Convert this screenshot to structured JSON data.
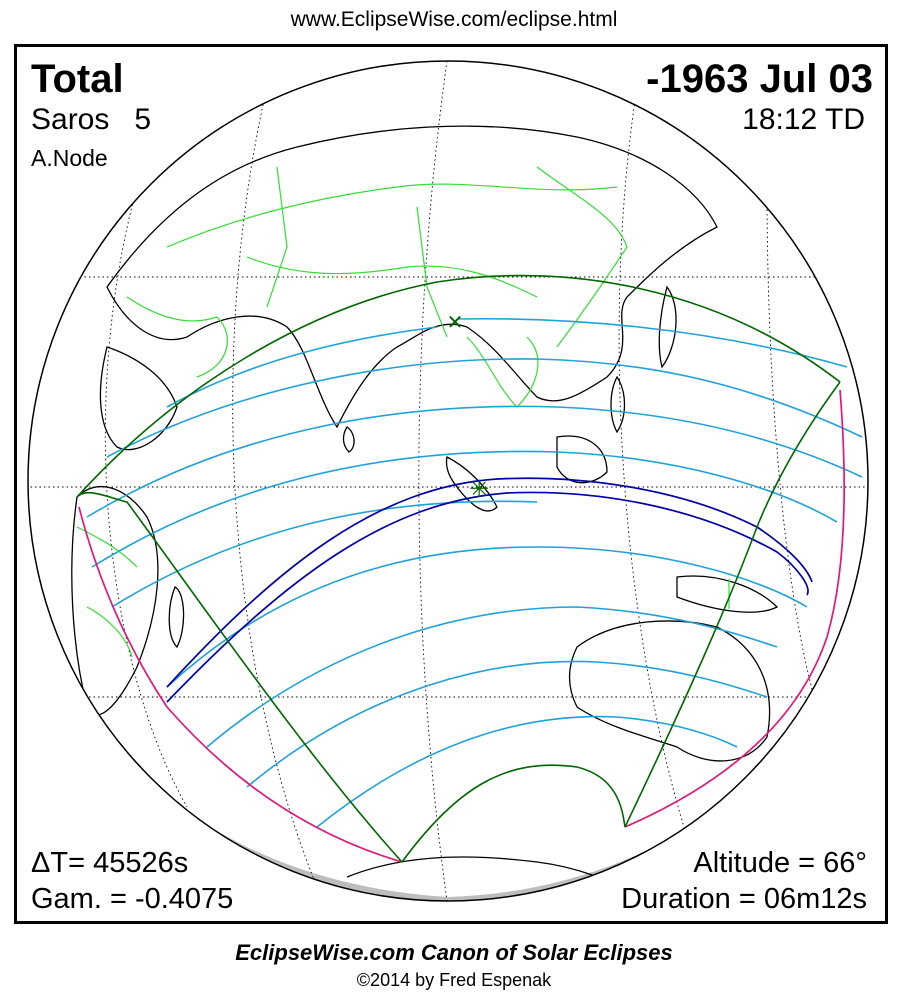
{
  "header": {
    "url": "www.EclipseWise.com/eclipse.html"
  },
  "eclipse": {
    "type": "Total",
    "saros_label": "Saros",
    "saros_number": "5",
    "node": "A.Node",
    "date": "-1963 Jul 03",
    "time": "18:12 TD",
    "delta_t": "ΔT=  45526s",
    "gamma": "Gam. = -0.4075",
    "altitude": "Altitude = 66°",
    "duration": "Duration = 06m12s"
  },
  "colors": {
    "central_path": "#0000aa",
    "penumbra_limits": "#006600",
    "coverage_curves": "#1fa2dc",
    "rise_set_curve": "#e0187a",
    "borders": "#33dd33",
    "coastlines": "#000000",
    "night_shade": "#bdbdbd"
  },
  "markers": {
    "greatest_eclipse": "✳",
    "greatest_duration": "✕"
  },
  "footer": {
    "title": "EclipseWise.com Canon of Solar Eclipses",
    "copyright": "©2014 by Fred Espenak"
  }
}
